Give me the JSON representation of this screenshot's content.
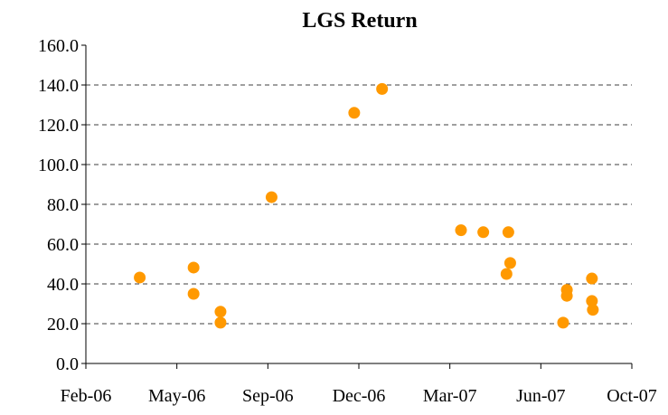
{
  "chart_data": {
    "type": "scatter",
    "title": "LGS Return",
    "series": [
      {
        "name": "LGS Return",
        "color": "#ff9900",
        "x": [
          "2006-04-20",
          "2006-06-17",
          "2006-06-17",
          "2006-07-16",
          "2006-07-16",
          "2006-09-09",
          "2006-12-07",
          "2007-01-06",
          "2007-04-01",
          "2007-04-25",
          "2007-05-22",
          "2007-05-24",
          "2007-05-20",
          "2007-07-20",
          "2007-07-24",
          "2007-07-24",
          "2007-08-20",
          "2007-08-20",
          "2007-08-21"
        ],
        "values": [
          43.2,
          48.2,
          35,
          26,
          20.5,
          83.6,
          126,
          138,
          67,
          66,
          66,
          50.5,
          45,
          20.5,
          37,
          34,
          31.4,
          42.7,
          27
        ]
      }
    ],
    "xlim": [
      "2006-02-21",
      "2007-10-02"
    ],
    "xticks": [
      {
        "value": "2006-02-21",
        "label": "Feb-06"
      },
      {
        "value": "2006-05-30",
        "label": "May-06"
      },
      {
        "value": "2006-09-05",
        "label": "Sep-06"
      },
      {
        "value": "2006-12-12",
        "label": "Dec-06"
      },
      {
        "value": "2007-03-20",
        "label": "Mar-07"
      },
      {
        "value": "2007-06-26",
        "label": "Jun-07"
      },
      {
        "value": "2007-10-02",
        "label": "Oct-07"
      }
    ],
    "ylim": [
      0,
      160
    ],
    "yticks": [
      {
        "value": 0,
        "label": "0.0"
      },
      {
        "value": 20,
        "label": "20.0"
      },
      {
        "value": 40,
        "label": "40.0"
      },
      {
        "value": 60,
        "label": "60.0"
      },
      {
        "value": 80,
        "label": "80.0"
      },
      {
        "value": 100,
        "label": "100.0"
      },
      {
        "value": 120,
        "label": "120.0"
      },
      {
        "value": 140,
        "label": "140.0"
      },
      {
        "value": 160,
        "label": "160.0"
      }
    ],
    "grid": true
  }
}
